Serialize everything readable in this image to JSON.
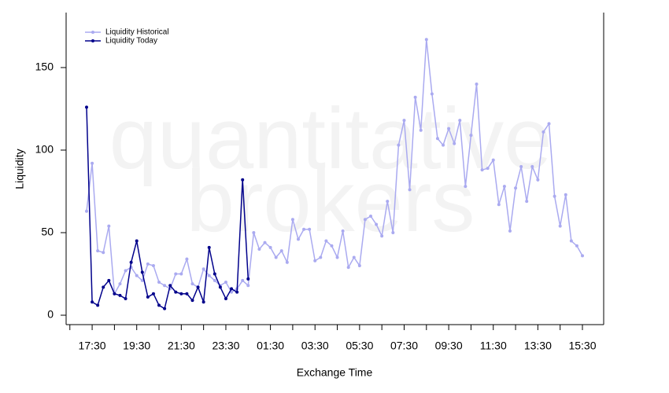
{
  "chart_data": {
    "type": "line",
    "watermark": [
      "quantitative",
      "brokers"
    ],
    "xlabel": "Exchange Time",
    "ylabel": "Liquidity",
    "x": [
      "17:15",
      "17:30",
      "17:45",
      "18:00",
      "18:15",
      "18:30",
      "18:45",
      "19:00",
      "19:15",
      "19:30",
      "19:45",
      "20:00",
      "20:15",
      "20:30",
      "20:45",
      "21:00",
      "21:15",
      "21:30",
      "21:45",
      "22:00",
      "22:15",
      "22:30",
      "22:45",
      "23:00",
      "23:15",
      "23:30",
      "23:45",
      "00:00",
      "00:15",
      "00:30",
      "00:45",
      "01:00",
      "01:15",
      "01:30",
      "01:45",
      "02:00",
      "02:15",
      "02:30",
      "02:45",
      "03:00",
      "03:15",
      "03:30",
      "03:45",
      "04:00",
      "04:15",
      "04:30",
      "04:45",
      "05:00",
      "05:15",
      "05:30",
      "05:45",
      "06:00",
      "06:15",
      "06:30",
      "06:45",
      "07:00",
      "07:15",
      "07:30",
      "07:45",
      "08:00",
      "08:15",
      "08:30",
      "08:45",
      "09:00",
      "09:15",
      "09:30",
      "09:45",
      "10:00",
      "10:15",
      "10:30",
      "10:45",
      "11:00",
      "11:15",
      "11:30",
      "11:45",
      "12:00",
      "12:15",
      "12:30",
      "12:45",
      "13:00",
      "13:15",
      "13:30",
      "13:45",
      "14:00",
      "14:15",
      "14:30",
      "14:45",
      "15:00",
      "15:15",
      "15:30"
    ],
    "series": [
      {
        "name": "Liquidity Historical",
        "color": "#aaaaf0",
        "values": [
          63,
          92,
          39,
          38,
          54,
          13,
          19,
          27,
          29,
          24,
          21,
          31,
          30,
          20,
          18,
          16,
          25,
          25,
          34,
          19,
          17,
          28,
          24,
          21,
          18,
          20,
          14,
          16,
          21,
          18,
          50,
          40,
          44,
          41,
          35,
          39,
          32,
          58,
          46,
          52,
          52,
          33,
          35,
          45,
          42,
          35,
          51,
          29,
          35,
          30,
          58,
          60,
          55,
          48,
          69,
          50,
          103,
          118,
          76,
          132,
          112,
          167,
          134,
          107,
          103,
          113,
          104,
          118,
          78,
          109,
          140,
          88,
          89,
          94,
          67,
          78,
          51,
          77,
          90,
          69,
          90,
          82,
          111,
          116,
          72,
          54,
          73,
          45,
          42,
          36
        ]
      },
      {
        "name": "Liquidity Today",
        "color": "#00008b",
        "values": [
          126,
          8,
          6,
          17,
          21,
          13,
          12,
          10,
          32,
          45,
          26,
          11,
          13,
          6,
          4,
          18,
          14,
          13,
          13,
          9,
          17,
          8,
          41,
          25,
          17,
          10,
          16,
          14,
          82,
          22,
          null,
          null,
          null,
          null,
          null,
          null,
          null,
          null,
          null,
          null,
          null,
          null,
          null,
          null,
          null,
          null,
          null,
          null,
          null,
          null,
          null,
          null,
          null,
          null,
          null,
          null,
          null,
          null,
          null,
          null,
          null,
          null,
          null,
          null,
          null,
          null,
          null,
          null,
          null,
          null,
          null,
          null,
          null,
          null,
          null,
          null,
          null,
          null,
          null,
          null,
          null,
          null,
          null,
          null,
          null,
          null,
          null,
          null,
          null,
          null
        ]
      }
    ],
    "ylim": [
      -5.7,
      183.3
    ],
    "yticks": [
      0,
      50,
      100,
      150
    ],
    "xticks": [
      "17:30",
      "19:30",
      "21:30",
      "23:30",
      "01:30",
      "03:30",
      "05:30",
      "07:30",
      "09:30",
      "11:30",
      "13:30",
      "15:30"
    ],
    "legend": "upper left"
  }
}
